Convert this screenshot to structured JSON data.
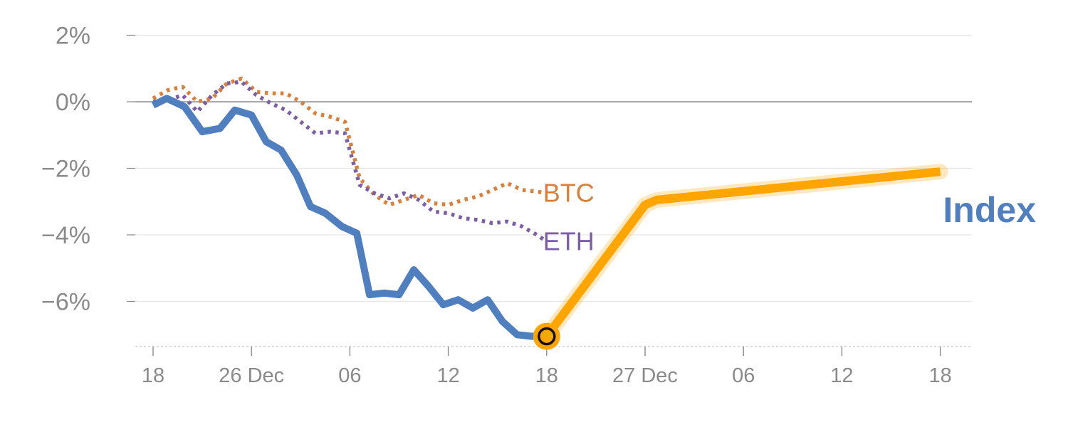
{
  "chart_data": {
    "type": "line",
    "title": "",
    "xlabel": "",
    "ylabel": "",
    "ylim": [
      -7.2,
      2.5
    ],
    "y_ticks": [
      2,
      0,
      -2,
      -4,
      -6
    ],
    "y_tick_labels": [
      "2%",
      "0%",
      "−2%",
      "−4%",
      "−6%"
    ],
    "x_ticks": [
      0,
      10,
      20,
      30,
      40,
      50,
      60,
      70,
      80
    ],
    "x_tick_labels": [
      "18",
      "26 Dec",
      "06",
      "12",
      "18",
      "27 Dec",
      "06",
      "12",
      "18"
    ],
    "grid": true,
    "series": [
      {
        "name": "Index",
        "color": "#4f7fbf",
        "style": "solid",
        "x": [
          0,
          1.4,
          3.2,
          5,
          6.8,
          8.3,
          10,
          11.5,
          13,
          14.6,
          16,
          17.5,
          19.2,
          20.7,
          22,
          23.5,
          25,
          26.5,
          28,
          29.5,
          31,
          32.5,
          34,
          35.5,
          37,
          38.5,
          40
        ],
        "values": [
          -0.1,
          0.1,
          -0.15,
          -0.9,
          -0.8,
          -0.25,
          -0.4,
          -1.2,
          -1.45,
          -2.2,
          -3.15,
          -3.35,
          -3.75,
          -3.95,
          -5.8,
          -5.75,
          -5.8,
          -5.05,
          -5.55,
          -6.1,
          -5.95,
          -6.2,
          -5.95,
          -6.6,
          -7.0,
          -7.05,
          -7.0
        ]
      },
      {
        "name": "BTC",
        "color": "#d97f3a",
        "style": "dotted",
        "x": [
          0,
          1.5,
          3,
          4.5,
          6,
          7.5,
          9,
          10.5,
          12,
          13.5,
          15,
          16.5,
          18,
          19.5,
          21,
          22.5,
          24,
          25.5,
          27,
          28.5,
          30,
          31.5,
          33,
          34.5,
          36,
          37.5,
          39,
          40
        ],
        "values": [
          0.1,
          0.35,
          0.45,
          0.0,
          0.1,
          0.55,
          0.7,
          0.3,
          0.25,
          0.25,
          0.0,
          -0.35,
          -0.45,
          -0.6,
          -2.3,
          -2.8,
          -3.1,
          -2.95,
          -2.8,
          -3.05,
          -3.1,
          -2.95,
          -2.85,
          -2.65,
          -2.45,
          -2.65,
          -2.7,
          -2.75
        ]
      },
      {
        "name": "ETH",
        "color": "#7b5ea6",
        "style": "dotted",
        "x": [
          0,
          1.5,
          3,
          4.5,
          6,
          7.5,
          9,
          10.5,
          12,
          13.5,
          15,
          16.5,
          18,
          19.5,
          21,
          22.5,
          24,
          25.5,
          27,
          28.5,
          30,
          31.5,
          33,
          34.5,
          36,
          37.5,
          39,
          40
        ],
        "values": [
          0.0,
          0.05,
          0.2,
          -0.3,
          0.2,
          0.55,
          0.6,
          0.2,
          -0.05,
          -0.25,
          -0.6,
          -0.95,
          -0.9,
          -0.95,
          -2.5,
          -2.75,
          -2.9,
          -2.75,
          -2.95,
          -3.3,
          -3.35,
          -3.5,
          -3.55,
          -3.65,
          -3.6,
          -3.75,
          -4.0,
          -4.2
        ]
      },
      {
        "name": "",
        "color": "#ffa500",
        "style": "projection",
        "x": [
          40,
          50,
          51.2,
          80
        ],
        "values": [
          -7.05,
          -3.1,
          -2.95,
          -2.1
        ]
      }
    ],
    "marker": {
      "x": 40,
      "y": -7.05
    }
  }
}
